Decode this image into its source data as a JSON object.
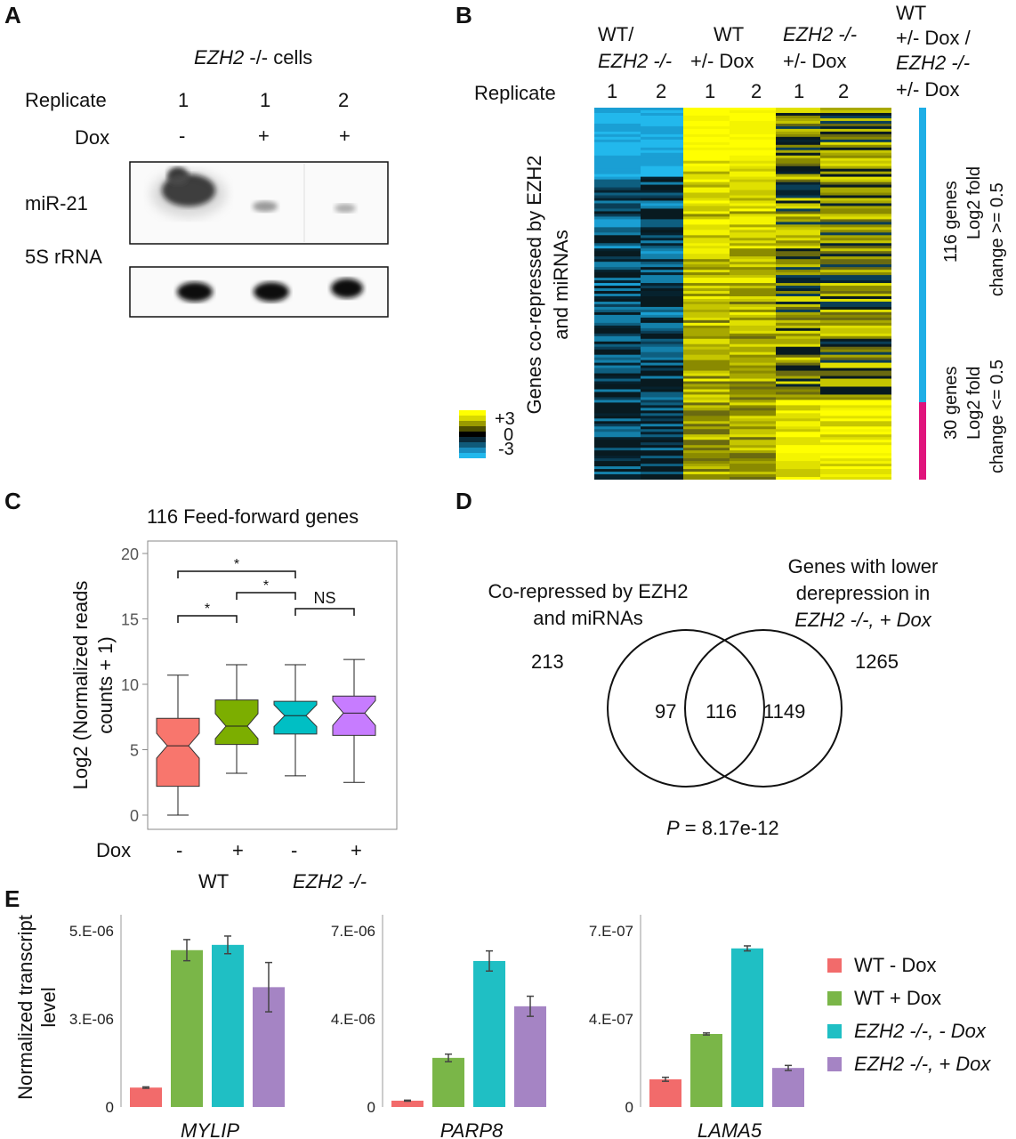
{
  "panel_a": {
    "label": "A",
    "cells_gene": "EZH2",
    "cells_suffix": " -/- cells",
    "replicate_label": "Replicate",
    "replicates": [
      "1",
      "1",
      "2"
    ],
    "dox_label": "Dox",
    "dox": [
      "-",
      "+",
      "+"
    ],
    "blot_rows": [
      "miR-21",
      "5S rRNA"
    ]
  },
  "panel_b": {
    "label": "B",
    "col_groups": [
      {
        "line1": "WT/",
        "line2": "EZH2 -/-"
      },
      {
        "line1": "WT",
        "line2": "+/- Dox"
      },
      {
        "line1": "EZH2 -/-",
        "line2": "+/- Dox"
      }
    ],
    "side_group": [
      "WT",
      "+/- Dox /",
      "EZH2 -/-",
      "+/- Dox"
    ],
    "replicate_label": "Replicate",
    "replicates": [
      "1",
      "2",
      "1",
      "2",
      "1",
      "2"
    ],
    "row_title_line1": "Genes co-repressed by EZH2",
    "row_title_line2": "and miRNAs",
    "scale_labels": [
      "+3",
      "0",
      "-3"
    ],
    "scale_colors": [
      "#ffff00",
      "#d8d800",
      "#9a9a00",
      "#4e4e00",
      "#000000",
      "#0a2a3a",
      "#105a7a",
      "#1a8cbe",
      "#22b8ec"
    ],
    "group1": {
      "count": "116 genes",
      "line2": "Log2 fold",
      "line3": "change >= 0.5",
      "color": "#1eaee6"
    },
    "group2": {
      "count": "30 genes",
      "line2": "Log2 fold",
      "line3": "change <=  0.5",
      "color": "#e0147c"
    }
  },
  "panel_c": {
    "label": "C",
    "title": "116 Feed-forward genes",
    "ylabel_line1": "Log2 (Normalized reads",
    "ylabel_line2": "counts + 1)",
    "dox_label": "Dox",
    "dox": [
      "-",
      "+",
      "-",
      "+"
    ],
    "groups": [
      "WT",
      "EZH2 -/-"
    ],
    "sig_star": "*",
    "sig_ns": "NS",
    "chart_data": {
      "type": "box",
      "title": "116 Feed-forward genes",
      "ylabel": "Log2 (Normalized reads counts + 1)",
      "ylim": [
        -1,
        21
      ],
      "yticks": [
        0,
        5,
        10,
        15,
        20
      ],
      "boxes": [
        {
          "group": "WT",
          "dox": "-",
          "min": 0.0,
          "q1": 2.2,
          "median": 5.3,
          "q3": 7.4,
          "max": 10.7,
          "color": "#f8766d"
        },
        {
          "group": "WT",
          "dox": "+",
          "min": 3.2,
          "q1": 5.4,
          "median": 6.8,
          "q3": 8.8,
          "max": 11.5,
          "color": "#7cae00"
        },
        {
          "group": "EZH2 -/-",
          "dox": "-",
          "min": 3.0,
          "q1": 6.2,
          "median": 7.6,
          "q3": 8.7,
          "max": 11.5,
          "color": "#00bfc4"
        },
        {
          "group": "EZH2 -/-",
          "dox": "+",
          "min": 2.5,
          "q1": 6.1,
          "median": 7.8,
          "q3": 9.1,
          "max": 11.9,
          "color": "#c77cff"
        }
      ],
      "comparisons": [
        {
          "a": 0,
          "b": 1,
          "label": "*"
        },
        {
          "a": 1,
          "b": 2,
          "label": "*"
        },
        {
          "a": 0,
          "b": 2,
          "label": "*"
        },
        {
          "a": 2,
          "b": 3,
          "label": "NS"
        }
      ]
    }
  },
  "panel_d": {
    "label": "D",
    "left_title_line1": "Co-repressed by EZH2",
    "left_title_line2": "and miRNAs",
    "right_title_line1": "Genes with lower",
    "right_title_line2": "derepression in",
    "right_title_line3": "EZH2 -/-, + Dox",
    "left_total": "213",
    "right_total": "1265",
    "left_only": "97",
    "overlap": "116",
    "right_only": "1149",
    "p_label": "P",
    "p_value": " = 8.17e-12"
  },
  "panel_e": {
    "label": "E",
    "ylabel_line1": "Normalized transcript",
    "ylabel_line2": "level",
    "legend": [
      "WT - Dox",
      "WT + Dox",
      "EZH2 -/-, - Dox",
      "EZH2 -/-, + Dox"
    ],
    "colors": [
      "#f26b6b",
      "#7ab648",
      "#1fbfc4",
      "#a584c4"
    ],
    "chart_data": [
      {
        "type": "bar",
        "title": "MYLIP",
        "categories": [
          "WT - Dox",
          "WT + Dox",
          "EZH2 -/-, - Dox",
          "EZH2 -/-, + Dox"
        ],
        "values": [
          5.5e-07,
          4.45e-06,
          4.6e-06,
          3.4e-06
        ],
        "errors": [
          2e-08,
          3e-07,
          2.5e-07,
          7e-07
        ],
        "ylim": [
          0,
          5e-06
        ],
        "yticks": [
          "0",
          "3.E-06",
          "5.E-06"
        ],
        "ytick_values": [
          0,
          2.5e-06,
          5e-06
        ]
      },
      {
        "type": "bar",
        "title": "PARP8",
        "categories": [
          "WT - Dox",
          "WT + Dox",
          "EZH2 -/-, - Dox",
          "EZH2 -/-, + Dox"
        ],
        "values": [
          2.5e-07,
          1.95e-06,
          5.8e-06,
          4e-06
        ],
        "errors": [
          2e-08,
          1.5e-07,
          4e-07,
          4e-07
        ],
        "ylim": [
          0,
          7e-06
        ],
        "yticks": [
          "0",
          "4.E-06",
          "7.E-06"
        ],
        "ytick_values": [
          0,
          3.5e-06,
          7e-06
        ]
      },
      {
        "type": "bar",
        "title": "LAMA5",
        "categories": [
          "WT - Dox",
          "WT + Dox",
          "EZH2 -/-, - Dox",
          "EZH2 -/-, + Dox"
        ],
        "values": [
          1.1e-07,
          2.9e-07,
          6.3e-07,
          1.55e-07
        ],
        "errors": [
          8e-09,
          4e-09,
          1e-08,
          1e-08
        ],
        "ylim": [
          0,
          7e-07
        ],
        "yticks": [
          "0",
          "4.E-07",
          "7.E-07"
        ],
        "ytick_values": [
          0,
          3.5e-07,
          7e-07
        ]
      }
    ]
  }
}
